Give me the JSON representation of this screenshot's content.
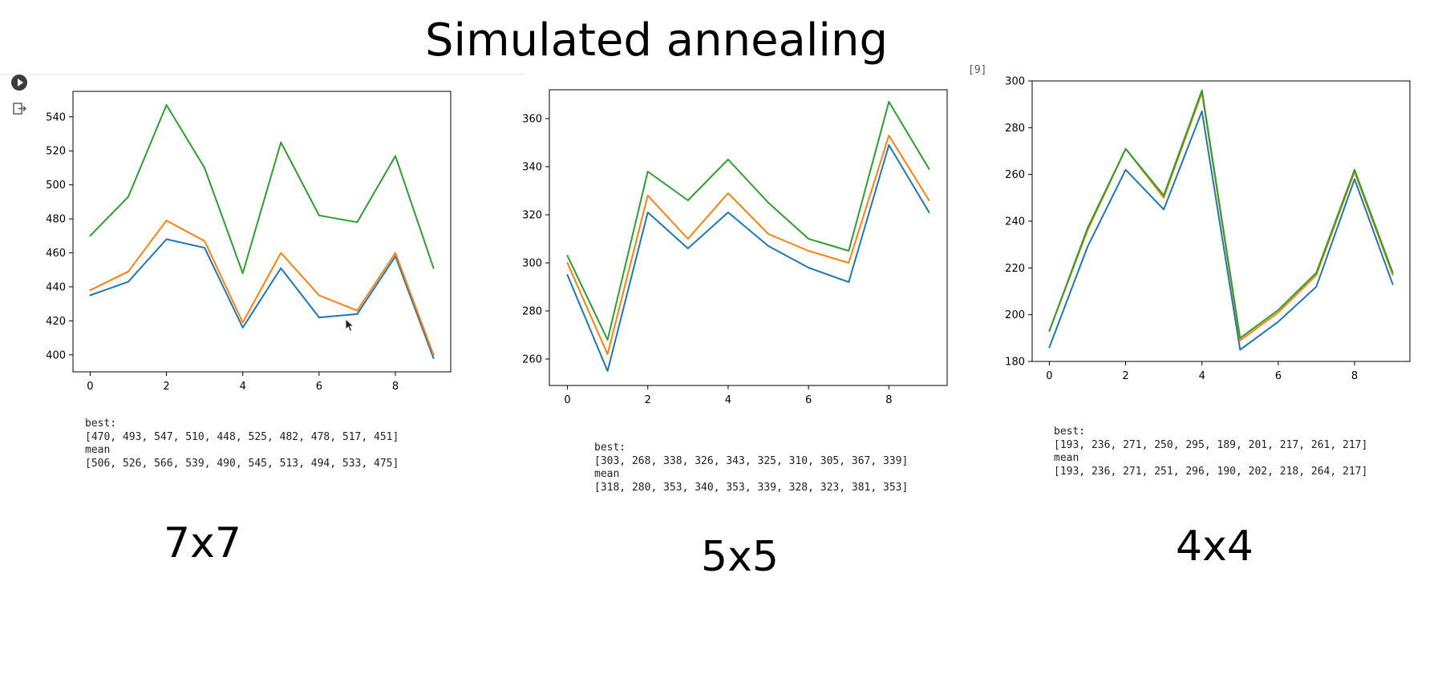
{
  "page": {
    "title": "Simulated annealing",
    "cell_exec_count": "[9]"
  },
  "icons": {
    "run": "play-circle-icon",
    "output": "output-arrow-icon",
    "cursor": "mouse-cursor-icon"
  },
  "colors": {
    "series": [
      "#1f77b4",
      "#ff7f0e",
      "#2ca02c"
    ]
  },
  "panels": [
    {
      "label": "7x7",
      "stats": {
        "best_label": "best:",
        "best_values": "[470, 493, 547, 510, 448, 525, 482, 478, 517, 451]",
        "mean_label": "mean",
        "mean_values": "[506, 526, 566, 539, 490, 545, 513, 494, 533, 475]"
      }
    },
    {
      "label": "5x5",
      "stats": {
        "best_label": "best:",
        "best_values": "[303, 268, 338, 326, 343, 325, 310, 305, 367, 339]",
        "mean_label": "mean",
        "mean_values": "[318, 280, 353, 340, 353, 339, 328, 323, 381, 353]"
      }
    },
    {
      "label": "4x4",
      "stats": {
        "best_label": "best:",
        "best_values": "[193, 236, 271, 250, 295, 189, 201, 217, 261, 217]",
        "mean_label": "mean",
        "mean_values": "[193, 236, 271, 251, 296, 190, 202, 218, 264, 217]"
      }
    }
  ],
  "chart_data": [
    {
      "type": "line",
      "x": [
        0,
        1,
        2,
        3,
        4,
        5,
        6,
        7,
        8,
        9
      ],
      "xticks": [
        0,
        2,
        4,
        6,
        8
      ],
      "yticks": [
        400,
        420,
        440,
        460,
        480,
        500,
        520,
        540
      ],
      "xlim": [
        -0.45,
        9.45
      ],
      "ylim": [
        390,
        555
      ],
      "grid": false,
      "series": [
        {
          "values": [
            435,
            443,
            468,
            463,
            416,
            451,
            422,
            424,
            458,
            398
          ]
        },
        {
          "values": [
            438,
            449,
            479,
            467,
            419,
            460,
            435,
            426,
            460,
            400
          ]
        },
        {
          "values": [
            470,
            493,
            547,
            510,
            448,
            525,
            482,
            478,
            517,
            451
          ]
        }
      ]
    },
    {
      "type": "line",
      "x": [
        0,
        1,
        2,
        3,
        4,
        5,
        6,
        7,
        8,
        9
      ],
      "xticks": [
        0,
        2,
        4,
        6,
        8
      ],
      "yticks": [
        260,
        280,
        300,
        320,
        340,
        360
      ],
      "xlim": [
        -0.45,
        9.45
      ],
      "ylim": [
        249,
        372
      ],
      "grid": false,
      "series": [
        {
          "values": [
            295,
            255,
            321,
            306,
            321,
            307,
            298,
            292,
            349,
            321
          ]
        },
        {
          "values": [
            300,
            262,
            328,
            310,
            329,
            312,
            305,
            300,
            353,
            326
          ]
        },
        {
          "values": [
            303,
            268,
            338,
            326,
            343,
            325,
            310,
            305,
            367,
            339
          ]
        }
      ]
    },
    {
      "type": "line",
      "x": [
        0,
        1,
        2,
        3,
        4,
        5,
        6,
        7,
        8,
        9
      ],
      "xticks": [
        0,
        2,
        4,
        6,
        8
      ],
      "yticks": [
        180,
        200,
        220,
        240,
        260,
        280,
        300
      ],
      "xlim": [
        -0.45,
        9.45
      ],
      "ylim": [
        180,
        300
      ],
      "grid": false,
      "series": [
        {
          "values": [
            186,
            229,
            262,
            245,
            287,
            185,
            197,
            212,
            258,
            213
          ]
        },
        {
          "values": [
            193,
            236,
            271,
            250,
            295,
            189,
            201,
            217,
            261,
            217
          ]
        },
        {
          "values": [
            193,
            237,
            271,
            251,
            296,
            190,
            202,
            218,
            262,
            218
          ]
        }
      ]
    }
  ]
}
